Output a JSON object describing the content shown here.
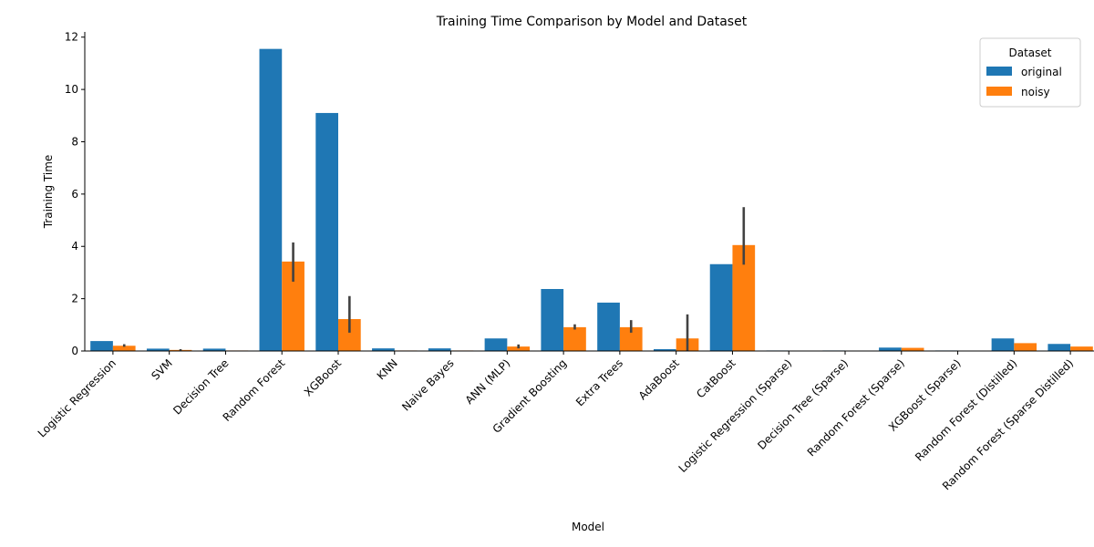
{
  "chart_data": {
    "type": "bar",
    "title": "Training Time Comparison by Model and Dataset",
    "xlabel": "Model",
    "ylabel": "Training Time",
    "ylim": [
      0,
      12.2
    ],
    "yticks": [
      0,
      2,
      4,
      6,
      8,
      10,
      12
    ],
    "grid": false,
    "legend": {
      "title": "Dataset",
      "position": "top-right"
    },
    "categories": [
      "Logistic Regression",
      "SVM",
      "Decision Tree",
      "Random Forest",
      "XGBoost",
      "KNN",
      "Naive Bayes",
      "ANN (MLP)",
      "Gradient Boosting",
      "Extra Trees",
      "AdaBoost",
      "CatBoost",
      "Logistic Regression (Sparse)",
      "Decision Tree (Sparse)",
      "Random Forest (Sparse)",
      "XGBoost (Sparse)",
      "Random Forest (Distilled)",
      "Random Forest (Sparse Distilled)"
    ],
    "series": [
      {
        "name": "original",
        "color": "#1f77b4",
        "values": [
          0.38,
          0.09,
          0.09,
          11.55,
          9.1,
          0.1,
          0.1,
          0.48,
          2.37,
          1.85,
          0.07,
          3.32,
          0.02,
          0.02,
          0.13,
          0.02,
          0.48,
          0.27
        ],
        "error": [
          null,
          null,
          null,
          null,
          null,
          null,
          null,
          null,
          null,
          null,
          null,
          null,
          null,
          null,
          null,
          null,
          null,
          null
        ]
      },
      {
        "name": "noisy",
        "color": "#ff7f0e",
        "values": [
          0.2,
          0.04,
          0.02,
          3.42,
          1.22,
          0.02,
          0.02,
          0.17,
          0.91,
          0.91,
          0.48,
          4.05,
          0.01,
          0.01,
          0.12,
          0.01,
          0.3,
          0.17
        ],
        "error": [
          [
            0.16,
            0.26
          ],
          [
            0.02,
            0.07
          ],
          null,
          [
            2.65,
            4.15
          ],
          [
            0.7,
            2.1
          ],
          null,
          null,
          [
            0.1,
            0.25
          ],
          [
            0.82,
            1.02
          ],
          [
            0.7,
            1.18
          ],
          [
            0.0,
            1.4
          ],
          [
            3.3,
            5.5
          ],
          null,
          null,
          null,
          null,
          null,
          null
        ]
      }
    ]
  }
}
